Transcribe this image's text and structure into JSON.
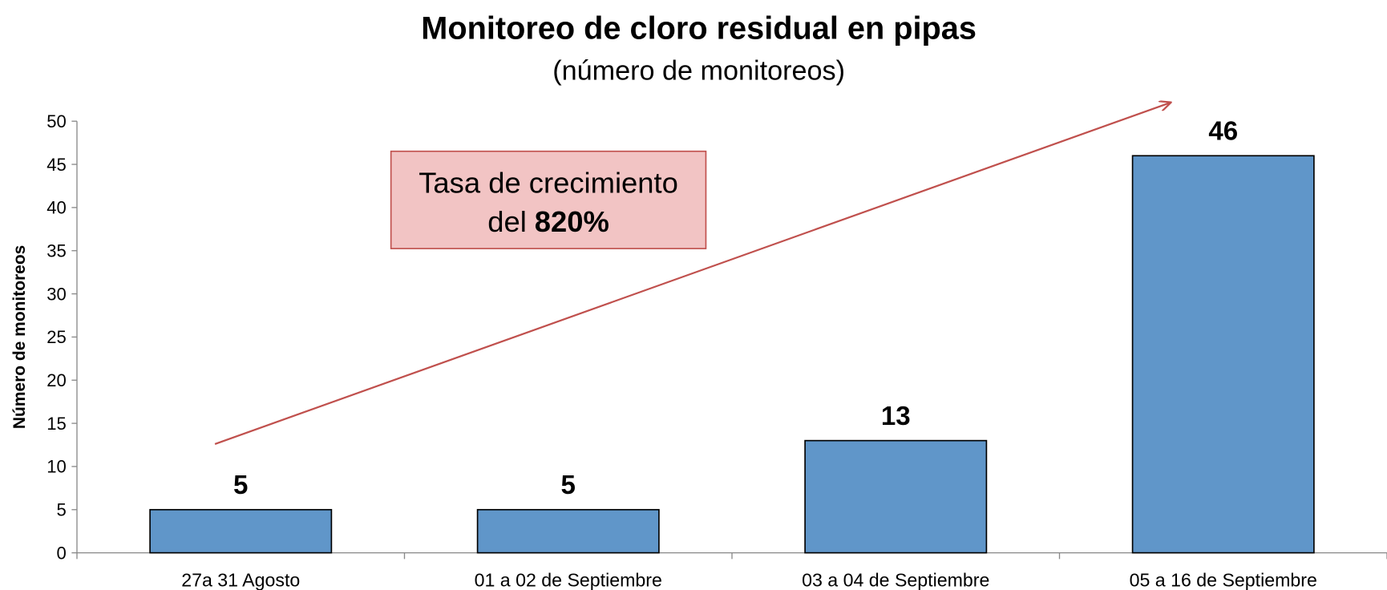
{
  "chart_data": {
    "type": "bar",
    "title": "Monitoreo de cloro residual en pipas",
    "subtitle": "(número de monitoreos)",
    "y_label": "Número de monitoreos",
    "categories": [
      "27a 31 Agosto",
      "01 a 02 de Septiembre",
      "03 a 04 de Septiembre",
      "05 a 16 de Septiembre"
    ],
    "values": [
      5,
      5,
      13,
      46
    ],
    "color": "#6096c9",
    "ylim": [
      0,
      50
    ],
    "yticks": [
      0,
      5,
      10,
      15,
      20,
      25,
      30,
      35,
      40,
      45,
      50
    ],
    "grid": false,
    "annotation": {
      "line1": "Tasa de crecimiento",
      "line2": "del",
      "highlight": "820%"
    }
  }
}
